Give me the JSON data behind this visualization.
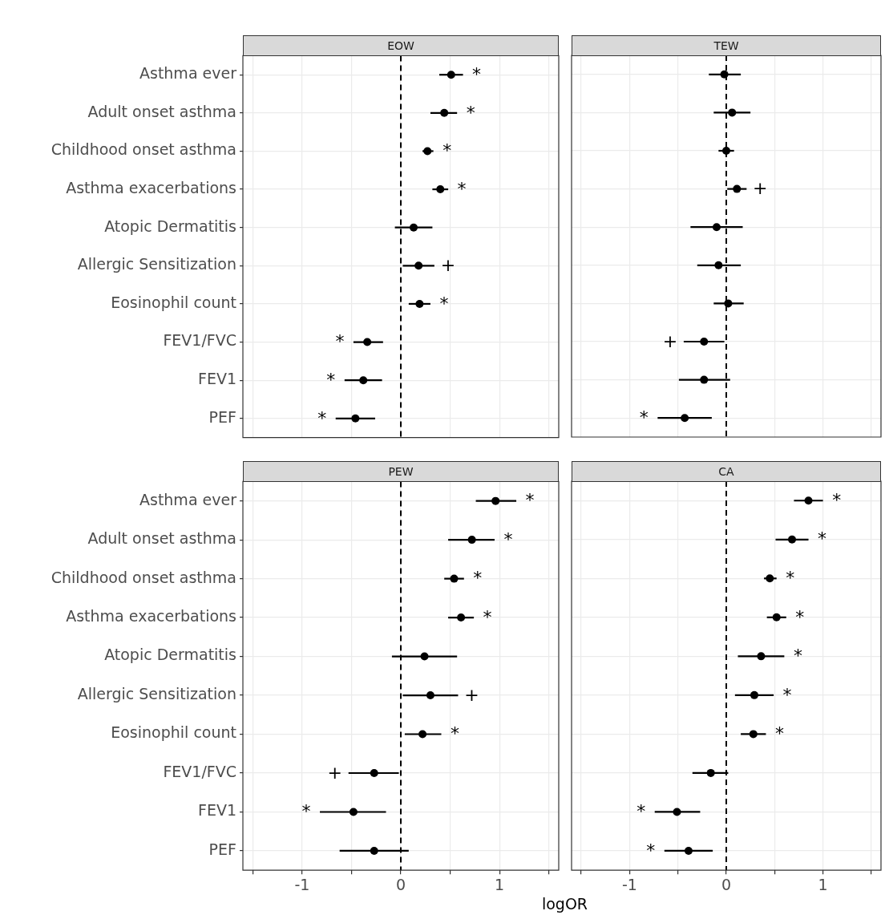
{
  "chart_data": [
    {
      "type": "scatter",
      "title": "EOW",
      "orientation": "horizontal",
      "marker": "circle",
      "grid": true,
      "tick_labels": "y",
      "categories": [
        "Asthma ever",
        "Adult onset asthma",
        "Childhood onset asthma",
        "Asthma exacerbations",
        "Atopic Dermatitis",
        "Allergic Sensitization",
        "Eosinophil count",
        "FEV1/FVC",
        "FEV1",
        "PEF"
      ],
      "series": [
        {
          "color": "#000000",
          "values": [
            0.51,
            0.44,
            0.27,
            0.4,
            0.13,
            0.18,
            0.19,
            -0.34,
            -0.38,
            -0.46
          ],
          "errors": [
            [
              0.39,
              0.63
            ],
            [
              0.3,
              0.57
            ],
            [
              0.22,
              0.33
            ],
            [
              0.32,
              0.48
            ],
            [
              -0.06,
              0.32
            ],
            [
              0.02,
              0.34
            ],
            [
              0.08,
              0.3
            ],
            [
              -0.48,
              -0.18
            ],
            [
              -0.57,
              -0.19
            ],
            [
              -0.66,
              -0.26
            ]
          ],
          "value_labels": [
            "*",
            "*",
            "*",
            "*",
            null,
            "+",
            "*",
            "*",
            "*",
            "*"
          ]
        }
      ],
      "xlim": [
        -1.6,
        1.6
      ],
      "xticks": [
        {
          "value": -1.5,
          "label": null
        },
        -1,
        {
          "value": -0.5,
          "label": null
        },
        0,
        {
          "value": 0.5,
          "label": null
        },
        1,
        {
          "value": 1.5,
          "label": null
        }
      ],
      "ref_lines": [
        {
          "axis": "x",
          "value": 0,
          "line_style": "dashed"
        }
      ]
    },
    {
      "type": "scatter",
      "title": "TEW",
      "orientation": "horizontal",
      "marker": "circle",
      "grid": true,
      "tick_labels": false,
      "categories": [
        null,
        null,
        null,
        null,
        null,
        null,
        null,
        null,
        null,
        null
      ],
      "series": [
        {
          "color": "#000000",
          "values": [
            -0.02,
            0.06,
            0.0,
            0.11,
            -0.1,
            -0.08,
            0.02,
            -0.23,
            -0.23,
            -0.43
          ],
          "errors": [
            [
              -0.18,
              0.15
            ],
            [
              -0.13,
              0.25
            ],
            [
              -0.08,
              0.08
            ],
            [
              0.01,
              0.21
            ],
            [
              -0.37,
              0.17
            ],
            [
              -0.3,
              0.15
            ],
            [
              -0.13,
              0.18
            ],
            [
              -0.44,
              -0.02
            ],
            [
              -0.49,
              0.04
            ],
            [
              -0.71,
              -0.15
            ]
          ],
          "value_labels": [
            null,
            null,
            null,
            "+",
            null,
            null,
            null,
            "+",
            null,
            "*"
          ]
        }
      ],
      "xlim": [
        -1.6,
        1.6
      ],
      "xticks": [
        {
          "value": -1.5,
          "label": null
        },
        -1,
        {
          "value": -0.5,
          "label": null
        },
        0,
        {
          "value": 0.5,
          "label": null
        },
        1,
        {
          "value": 1.5,
          "label": null
        }
      ],
      "ref_lines": [
        {
          "axis": "x",
          "value": 0,
          "line_style": "dashed"
        }
      ]
    },
    {
      "type": "scatter",
      "title": "PEW",
      "xlabel": "logOR",
      "orientation": "horizontal",
      "marker": "circle",
      "grid": true,
      "categories": [
        "Asthma ever",
        "Adult onset asthma",
        "Childhood onset asthma",
        "Asthma exacerbations",
        "Atopic Dermatitis",
        "Allergic Sensitization",
        "Eosinophil count",
        "FEV1/FVC",
        "FEV1",
        "PEF"
      ],
      "series": [
        {
          "color": "#000000",
          "values": [
            0.96,
            0.72,
            0.54,
            0.61,
            0.24,
            0.3,
            0.22,
            -0.27,
            -0.48,
            -0.27
          ],
          "errors": [
            [
              0.76,
              1.17
            ],
            [
              0.48,
              0.95
            ],
            [
              0.44,
              0.64
            ],
            [
              0.48,
              0.74
            ],
            [
              -0.09,
              0.57
            ],
            [
              0.02,
              0.58
            ],
            [
              0.04,
              0.41
            ],
            [
              -0.53,
              -0.02
            ],
            [
              -0.82,
              -0.15
            ],
            [
              -0.62,
              0.08
            ]
          ],
          "value_labels": [
            "*",
            "*",
            "*",
            "*",
            null,
            "+",
            "*",
            "+",
            "*",
            null
          ]
        }
      ],
      "xlim": [
        -1.6,
        1.6
      ],
      "xticks": [
        {
          "value": -1.5,
          "label": null
        },
        -1,
        {
          "value": -0.5,
          "label": null
        },
        0,
        {
          "value": 0.5,
          "label": null
        },
        1,
        {
          "value": 1.5,
          "label": null
        }
      ],
      "ref_lines": [
        {
          "axis": "x",
          "value": 0,
          "line_style": "dashed"
        }
      ]
    },
    {
      "type": "scatter",
      "title": "CA",
      "orientation": "horizontal",
      "marker": "circle",
      "grid": true,
      "tick_labels": "x",
      "categories": [
        null,
        null,
        null,
        null,
        null,
        null,
        null,
        null,
        null,
        null
      ],
      "series": [
        {
          "color": "#000000",
          "values": [
            0.85,
            0.68,
            0.45,
            0.52,
            0.36,
            0.29,
            0.28,
            -0.16,
            -0.51,
            -0.39
          ],
          "errors": [
            [
              0.7,
              1.0
            ],
            [
              0.51,
              0.85
            ],
            [
              0.39,
              0.52
            ],
            [
              0.42,
              0.62
            ],
            [
              0.12,
              0.6
            ],
            [
              0.09,
              0.49
            ],
            [
              0.15,
              0.41
            ],
            [
              -0.35,
              0.02
            ],
            [
              -0.74,
              -0.27
            ],
            [
              -0.64,
              -0.14
            ]
          ],
          "value_labels": [
            "*",
            "*",
            "*",
            "*",
            "*",
            "*",
            "*",
            null,
            "*",
            "*"
          ]
        }
      ],
      "xlim": [
        -1.6,
        1.6
      ],
      "xticks": [
        {
          "value": -1.5,
          "label": null
        },
        -1,
        {
          "value": -0.5,
          "label": null
        },
        0,
        {
          "value": 0.5,
          "label": null
        },
        1,
        {
          "value": 1.5,
          "label": null
        }
      ],
      "ref_lines": [
        {
          "axis": "x",
          "value": 0,
          "line_style": "dashed"
        }
      ]
    }
  ]
}
